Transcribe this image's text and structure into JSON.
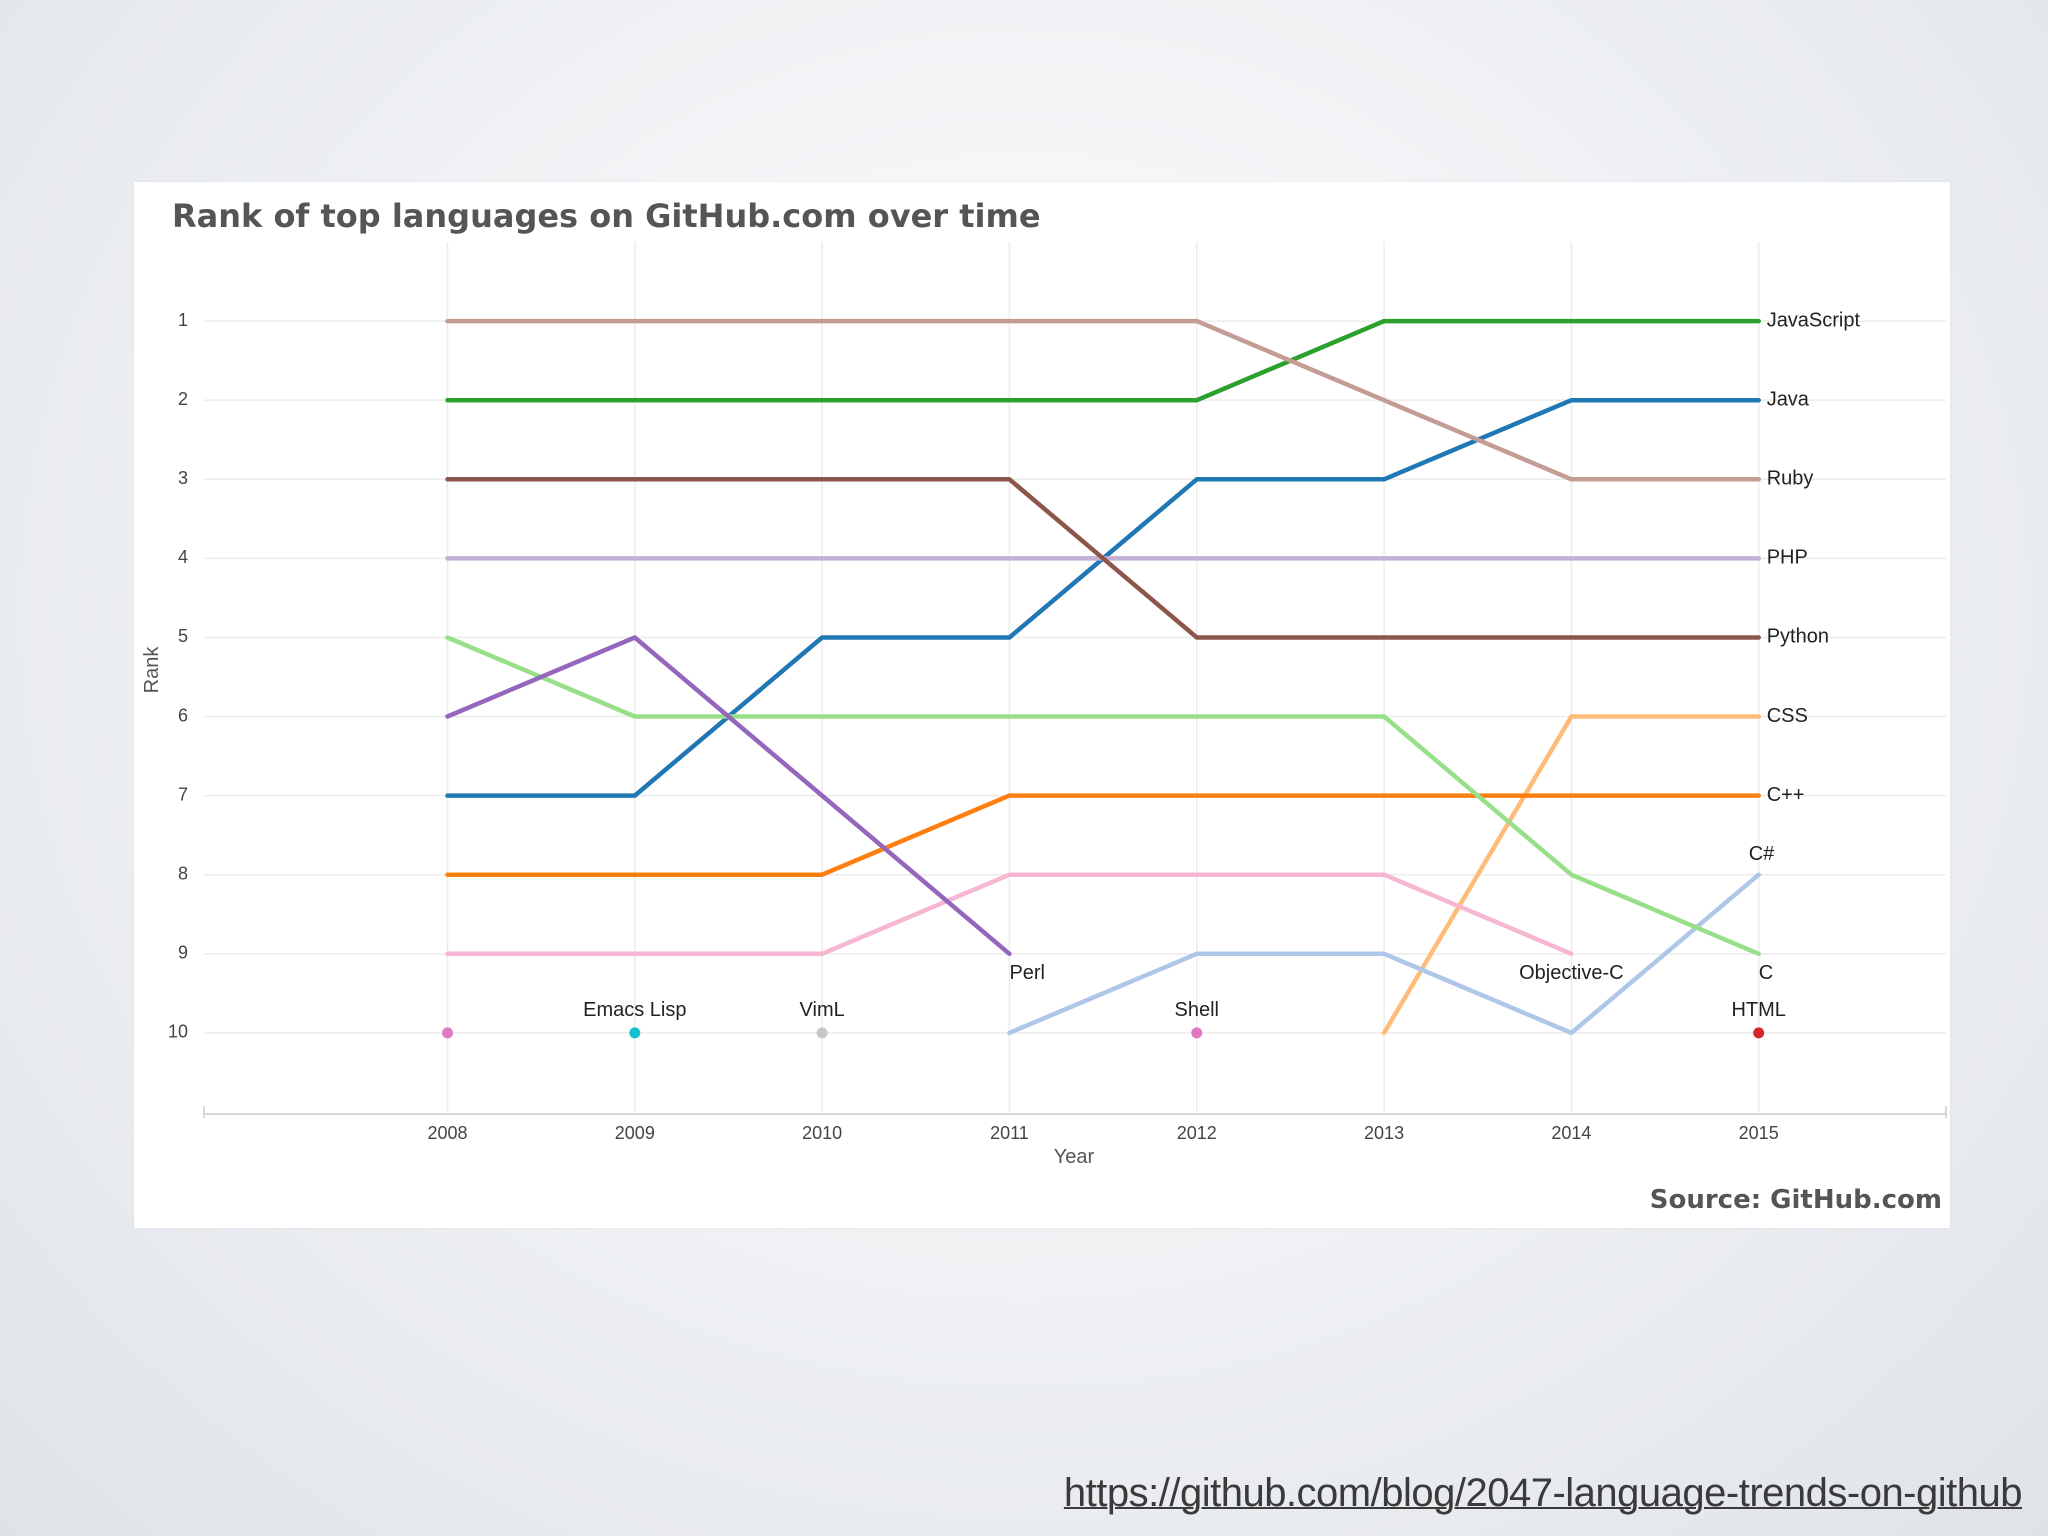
{
  "link": {
    "url_text": "https://github.com/blog/2047-language-trends-on-github"
  },
  "chart_data": {
    "type": "line",
    "title": "Rank of top languages on GitHub.com over time",
    "xlabel": "Year",
    "ylabel": "Rank",
    "source": "Source: GitHub.com",
    "x_ticks": [
      "2008",
      "2009",
      "2010",
      "2011",
      "2012",
      "2013",
      "2014",
      "2015"
    ],
    "y_ticks": [
      "1",
      "2",
      "3",
      "4",
      "5",
      "6",
      "7",
      "8",
      "9",
      "10"
    ],
    "xlim": [
      2006.7,
      2016
    ],
    "ylim": [
      1,
      11
    ],
    "y_inverted": true,
    "grid": true,
    "legend": "none",
    "series": [
      {
        "name": "JavaScript",
        "color": "#2ca02c",
        "x": [
          2008,
          2009,
          2010,
          2011,
          2012,
          2013,
          2014,
          2015
        ],
        "y": [
          2,
          2,
          2,
          2,
          2,
          1,
          1,
          1
        ]
      },
      {
        "name": "Java",
        "color": "#1f77b4",
        "x": [
          2008,
          2009,
          2010,
          2011,
          2012,
          2013,
          2014,
          2015
        ],
        "y": [
          7,
          7,
          5,
          5,
          3,
          3,
          2,
          2
        ]
      },
      {
        "name": "Ruby",
        "color": "#c49c94",
        "x": [
          2008,
          2009,
          2010,
          2011,
          2012,
          2013,
          2014,
          2015
        ],
        "y": [
          1,
          1,
          1,
          1,
          1,
          2,
          3,
          3
        ]
      },
      {
        "name": "PHP",
        "color": "#c5b0d5",
        "x": [
          2008,
          2009,
          2010,
          2011,
          2012,
          2013,
          2014,
          2015
        ],
        "y": [
          4,
          4,
          4,
          4,
          4,
          4,
          4,
          4
        ]
      },
      {
        "name": "Python",
        "color": "#8c564b",
        "x": [
          2008,
          2009,
          2010,
          2011,
          2012,
          2013,
          2014,
          2015
        ],
        "y": [
          3,
          3,
          3,
          3,
          5,
          5,
          5,
          5
        ]
      },
      {
        "name": "CSS",
        "color": "#ffbb78",
        "x": [
          2013,
          2014,
          2015
        ],
        "y": [
          10,
          6,
          6
        ]
      },
      {
        "name": "C++",
        "color": "#ff7f0e",
        "x": [
          2008,
          2009,
          2010,
          2011,
          2012,
          2013,
          2014,
          2015
        ],
        "y": [
          8,
          8,
          8,
          7,
          7,
          7,
          7,
          7
        ]
      },
      {
        "name": "C#",
        "color": "#aec7e8",
        "x": [
          2011,
          2012,
          2013,
          2014,
          2015
        ],
        "y": [
          10,
          9,
          9,
          10,
          8
        ]
      },
      {
        "name": "C",
        "color": "#98df8a",
        "x": [
          2008,
          2009,
          2010,
          2011,
          2012,
          2013,
          2014,
          2015
        ],
        "y": [
          5,
          6,
          6,
          6,
          6,
          6,
          8,
          9
        ]
      },
      {
        "name": "Objective-C",
        "color": "#f7b6d2",
        "x": [
          2008,
          2009,
          2010,
          2011,
          2012,
          2013,
          2014
        ],
        "y": [
          9,
          9,
          9,
          8,
          8,
          8,
          9
        ]
      },
      {
        "name": "Perl",
        "color": "#9467bd",
        "x": [
          2008,
          2009,
          2010,
          2011
        ],
        "y": [
          6,
          5,
          7,
          9
        ]
      },
      {
        "name": "Emacs Lisp",
        "color": "#17becf",
        "x": [
          2009
        ],
        "y": [
          10
        ]
      },
      {
        "name": "VimL",
        "color": "#c7c7c7",
        "x": [
          2010
        ],
        "y": [
          10
        ]
      },
      {
        "name": "Shell",
        "color": "#e377c2",
        "x": [
          2012
        ],
        "y": [
          10
        ]
      },
      {
        "name": "HTML",
        "color": "#d62728",
        "x": [
          2015
        ],
        "y": [
          10
        ]
      }
    ],
    "points_unlabeled": [
      {
        "color": "#e377c2",
        "x": 2008,
        "y": 10
      }
    ]
  }
}
